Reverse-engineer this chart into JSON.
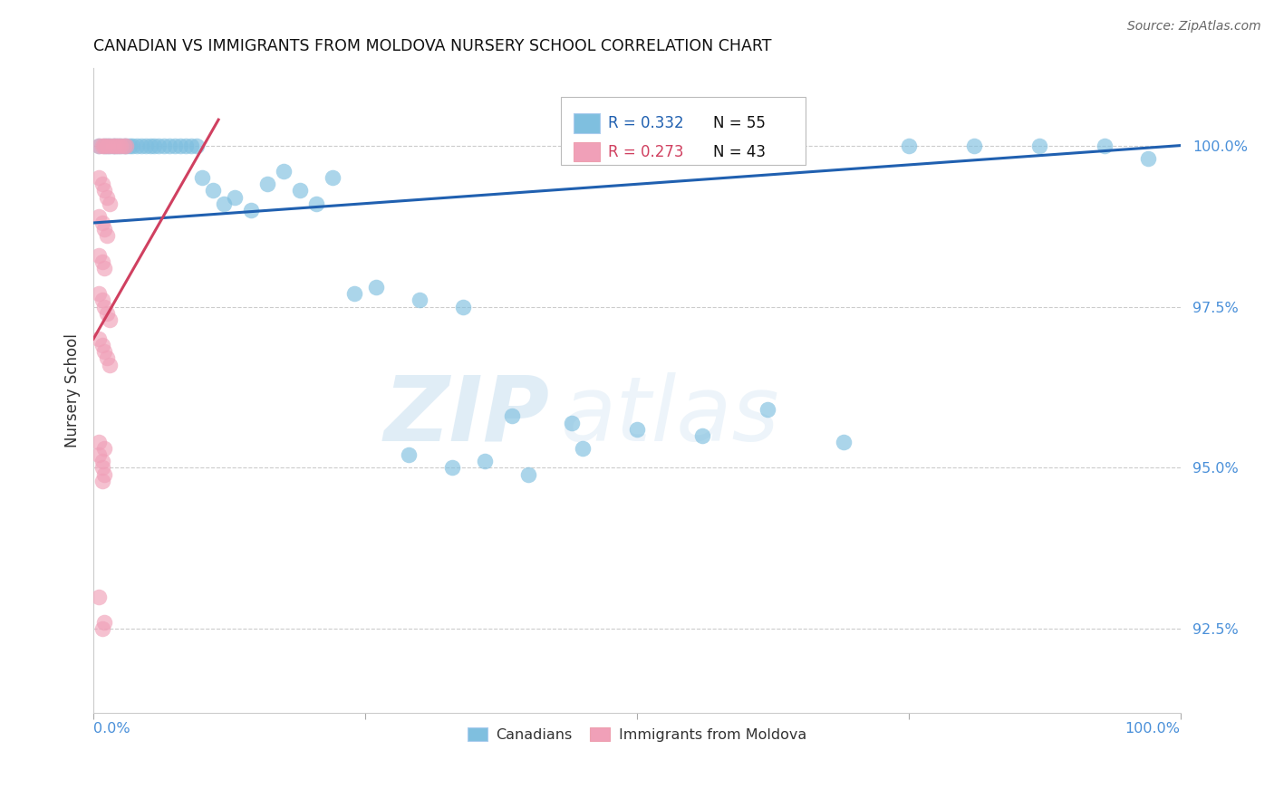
{
  "title": "CANADIAN VS IMMIGRANTS FROM MOLDOVA NURSERY SCHOOL CORRELATION CHART",
  "source": "Source: ZipAtlas.com",
  "ylabel": "Nursery School",
  "yticks": [
    92.5,
    95.0,
    97.5,
    100.0
  ],
  "ytick_labels": [
    "92.5%",
    "95.0%",
    "97.5%",
    "100.0%"
  ],
  "xlim": [
    0.0,
    1.0
  ],
  "ylim": [
    91.2,
    101.2
  ],
  "legend_r_blue": "R = 0.332",
  "legend_n_blue": "N = 55",
  "legend_r_pink": "R = 0.273",
  "legend_n_pink": "N = 43",
  "blue_color": "#7fbfdf",
  "pink_color": "#f0a0b8",
  "blue_line_color": "#2060b0",
  "pink_line_color": "#d04060",
  "background_color": "#ffffff",
  "title_fontsize": 12.5,
  "axis_label_color": "#4a90d9",
  "watermark_zip": "ZIP",
  "watermark_atlas": "atlas",
  "canadians_x": [
    0.005,
    0.01,
    0.012,
    0.015,
    0.018,
    0.02,
    0.022,
    0.025,
    0.028,
    0.03,
    0.033,
    0.036,
    0.04,
    0.044,
    0.048,
    0.052,
    0.056,
    0.06,
    0.065,
    0.07,
    0.075,
    0.08,
    0.085,
    0.09,
    0.095,
    0.1,
    0.11,
    0.12,
    0.13,
    0.145,
    0.16,
    0.175,
    0.19,
    0.205,
    0.22,
    0.24,
    0.26,
    0.3,
    0.34,
    0.385,
    0.44,
    0.5,
    0.56,
    0.62,
    0.69,
    0.75,
    0.81,
    0.87,
    0.93,
    0.97,
    0.29,
    0.33,
    0.36,
    0.4,
    0.45
  ],
  "canadians_y": [
    100.0,
    100.0,
    100.0,
    100.0,
    100.0,
    100.0,
    100.0,
    100.0,
    100.0,
    100.0,
    100.0,
    100.0,
    100.0,
    100.0,
    100.0,
    100.0,
    100.0,
    100.0,
    100.0,
    100.0,
    100.0,
    100.0,
    100.0,
    100.0,
    100.0,
    99.5,
    99.3,
    99.1,
    99.2,
    99.0,
    99.4,
    99.6,
    99.3,
    99.1,
    99.5,
    97.7,
    97.8,
    97.6,
    97.5,
    95.8,
    95.7,
    95.6,
    95.5,
    95.9,
    95.4,
    100.0,
    100.0,
    100.0,
    100.0,
    99.8,
    95.2,
    95.0,
    95.1,
    94.9,
    95.3
  ],
  "moldova_x": [
    0.005,
    0.008,
    0.01,
    0.012,
    0.015,
    0.018,
    0.02,
    0.022,
    0.025,
    0.028,
    0.03,
    0.005,
    0.008,
    0.01,
    0.012,
    0.015,
    0.005,
    0.008,
    0.01,
    0.012,
    0.005,
    0.008,
    0.01,
    0.005,
    0.008,
    0.01,
    0.012,
    0.015,
    0.005,
    0.008,
    0.01,
    0.012,
    0.015,
    0.005,
    0.008,
    0.01,
    0.008,
    0.01,
    0.005,
    0.008,
    0.005,
    0.008,
    0.01
  ],
  "moldova_y": [
    100.0,
    100.0,
    100.0,
    100.0,
    100.0,
    100.0,
    100.0,
    100.0,
    100.0,
    100.0,
    100.0,
    99.5,
    99.4,
    99.3,
    99.2,
    99.1,
    98.9,
    98.8,
    98.7,
    98.6,
    98.3,
    98.2,
    98.1,
    97.7,
    97.6,
    97.5,
    97.4,
    97.3,
    97.0,
    96.9,
    96.8,
    96.7,
    96.6,
    95.2,
    95.1,
    95.3,
    95.0,
    94.9,
    95.4,
    94.8,
    93.0,
    92.5,
    92.6
  ],
  "blue_line_x": [
    0.0,
    1.0
  ],
  "blue_line_y": [
    98.8,
    100.0
  ],
  "pink_line_x": [
    0.0,
    0.115
  ],
  "pink_line_y": [
    97.0,
    100.4
  ]
}
